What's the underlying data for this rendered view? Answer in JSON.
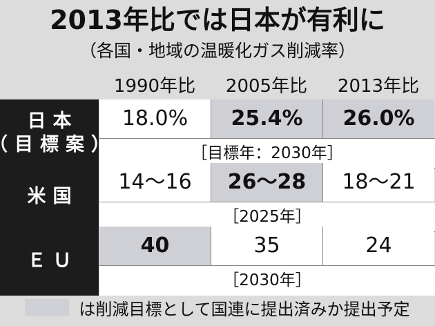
{
  "chart_data": {
    "type": "table",
    "title": "2013年比では日本が有利に",
    "subtitle": "（各国・地域の温暖化ガス削減率）",
    "columns": [
      "1990年比",
      "2005年比",
      "2013年比"
    ],
    "rows": [
      {
        "label_lines": [
          "日本",
          "（目標案）"
        ],
        "cells": [
          {
            "text": "18.0%",
            "highlight": false
          },
          {
            "text": "25.4%",
            "highlight": true
          },
          {
            "text": "26.0%",
            "highlight": true
          }
        ],
        "target": "［目標年：2030年］"
      },
      {
        "label_lines": [
          "米国"
        ],
        "cells": [
          {
            "text": "14～16",
            "highlight": false
          },
          {
            "text": "26～28",
            "highlight": true
          },
          {
            "text": "18～21",
            "highlight": false
          }
        ],
        "target": "［2025年］"
      },
      {
        "label_lines": [
          "ＥＵ"
        ],
        "cells": [
          {
            "text": "40",
            "highlight": true
          },
          {
            "text": "35",
            "highlight": false
          },
          {
            "text": "24",
            "highlight": false
          }
        ],
        "target": "［2030年］"
      }
    ],
    "legend": "は削減目標として国連に提出済みか提出予定",
    "highlight_color": "#cfcfd6"
  }
}
